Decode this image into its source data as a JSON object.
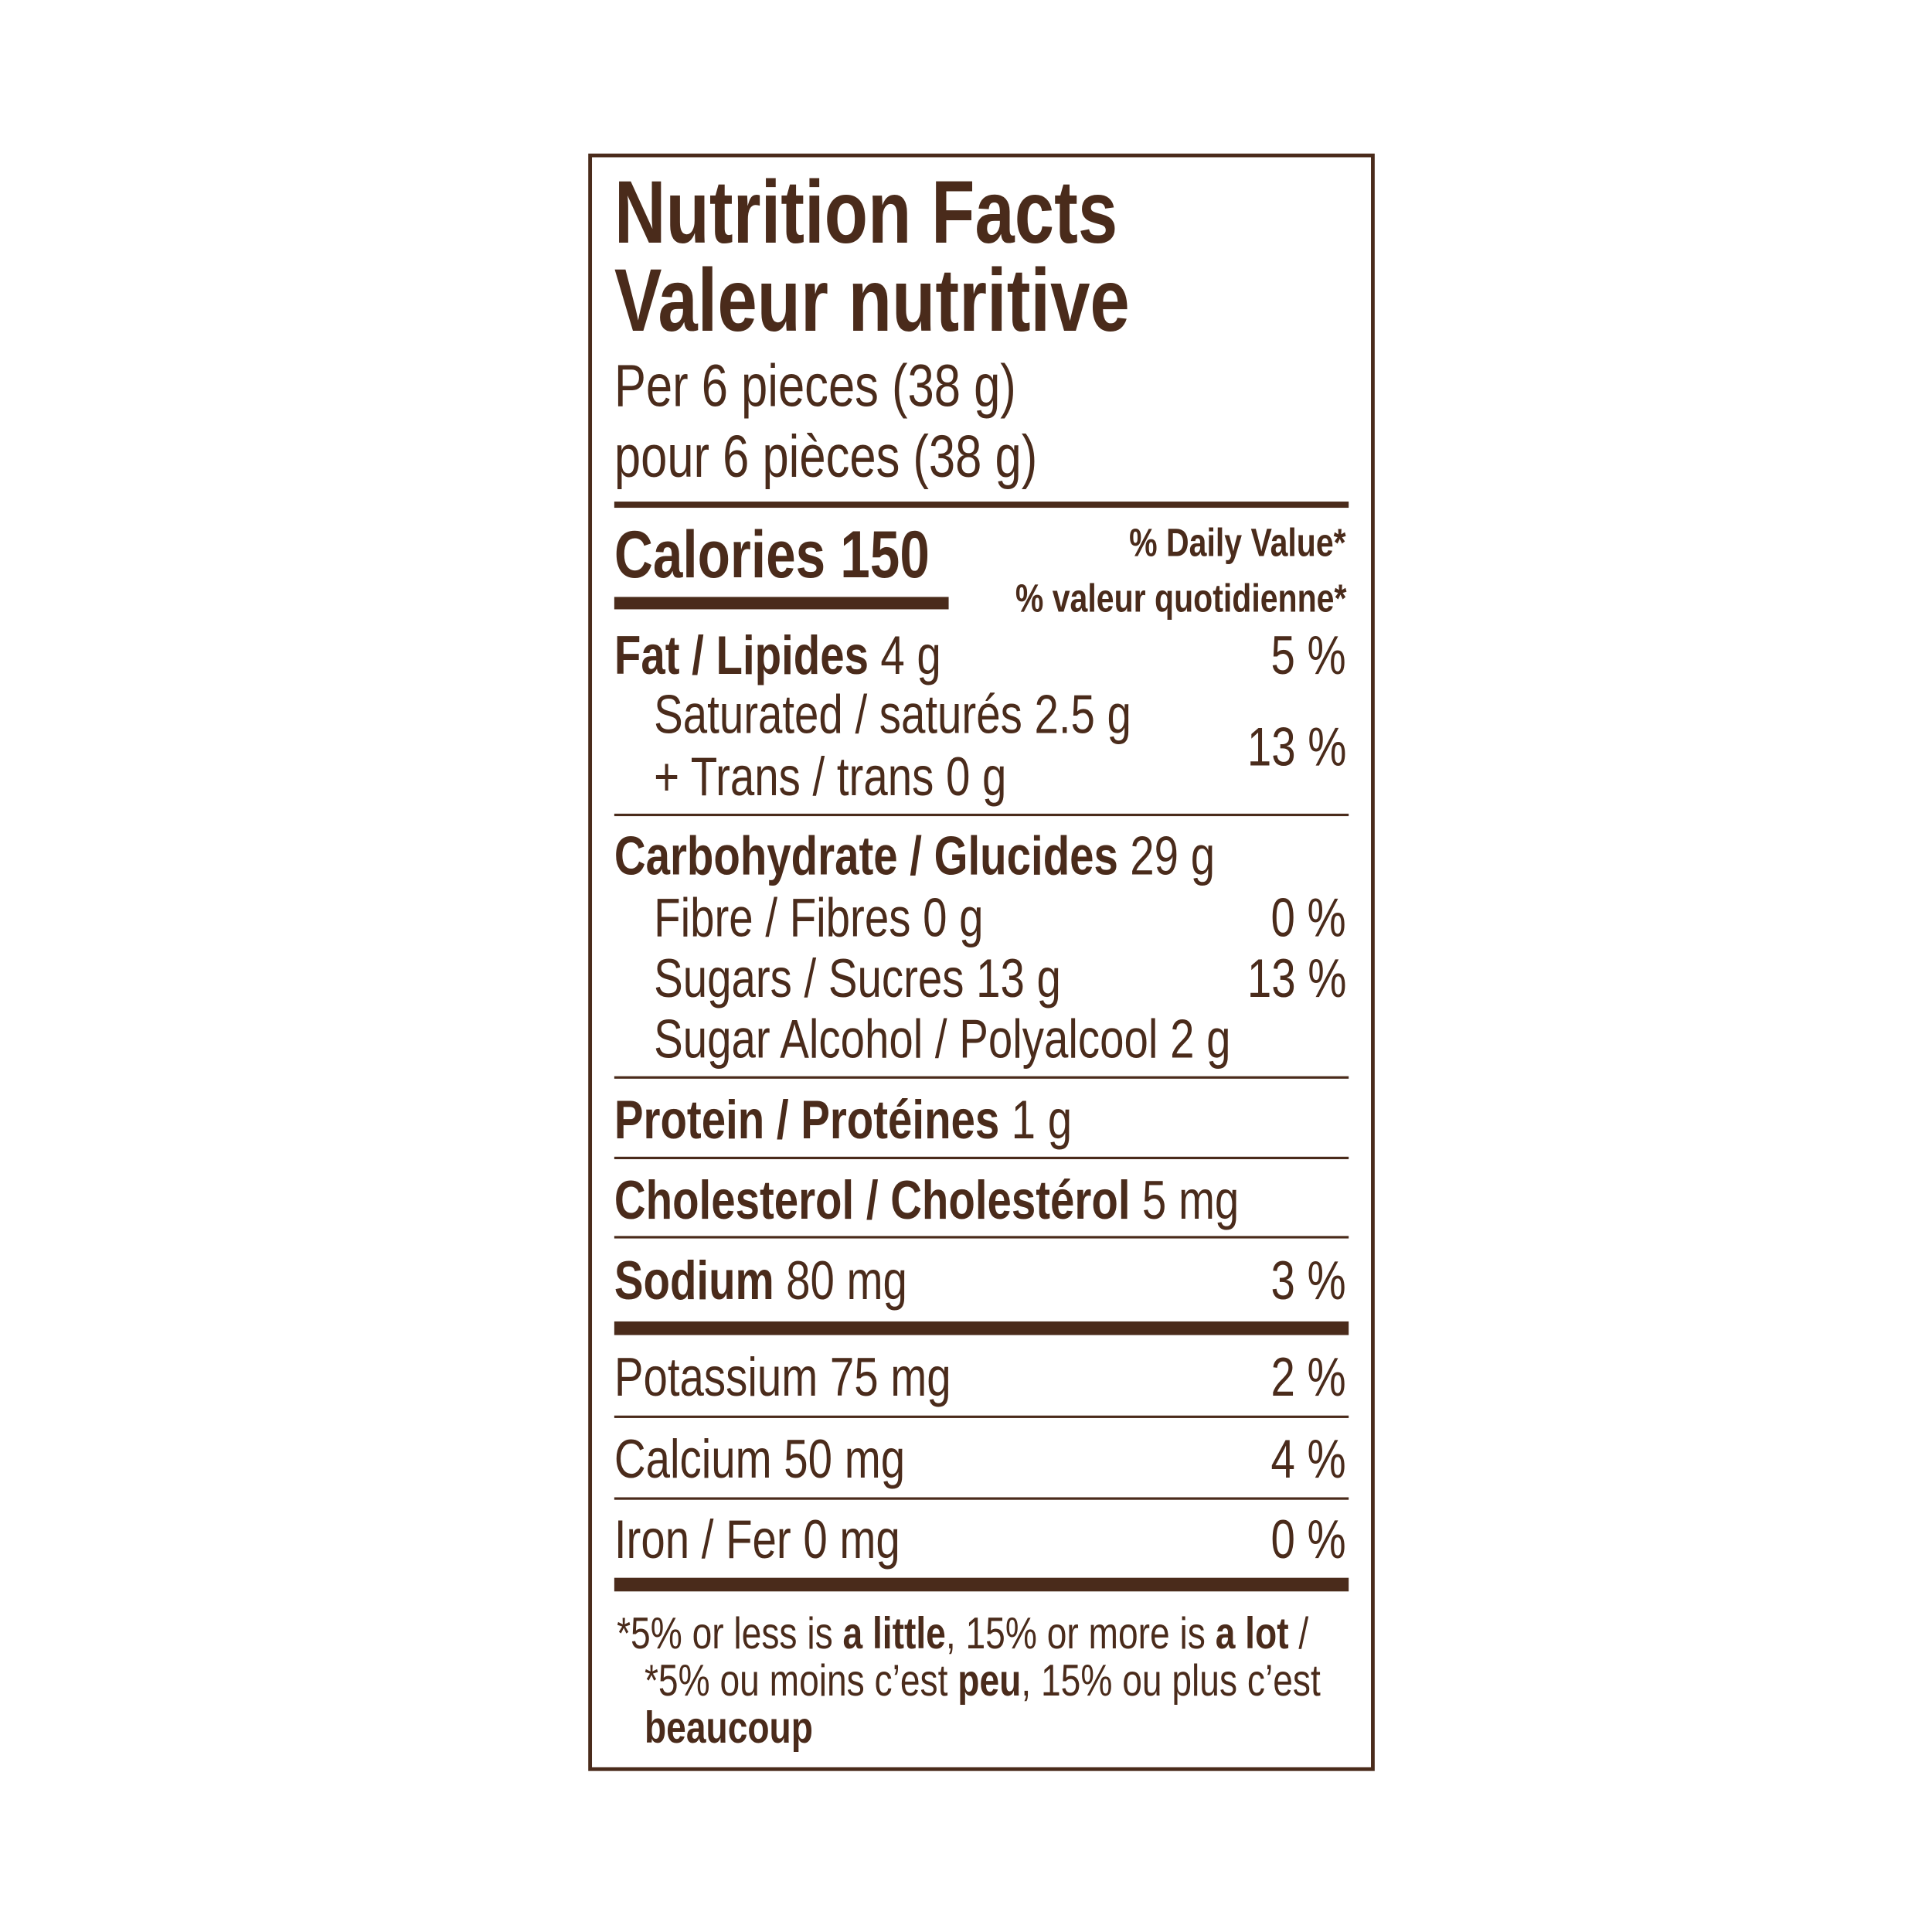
{
  "title": [
    "Nutrition Facts",
    "Valeur nutritive"
  ],
  "serving": [
    "Per 6 pieces (38 g)",
    "pour 6 pièces (38 g)"
  ],
  "calories": "Calories 150",
  "daily_value": [
    "% Daily Value*",
    "% valeur quotidienne*"
  ],
  "fat": {
    "name": "Fat / Lipides",
    "amount": "4 g",
    "dv": "5 %"
  },
  "saturated_trans": {
    "lines": [
      "Saturated / saturés 2.5 g",
      "+ Trans / trans 0 g"
    ],
    "dv": "13 %"
  },
  "carbohydrate": {
    "name": "Carbohydrate / Glucides",
    "amount": "29 g"
  },
  "fibre": {
    "label": "Fibre / Fibres 0 g",
    "dv": "0 %"
  },
  "sugars": {
    "label": "Sugars / Sucres 13 g",
    "dv": "13 %"
  },
  "sugar_alcohol": {
    "label": "Sugar Alcohol / Polyalcool 2 g"
  },
  "protein": {
    "name": "Protein / Protéines",
    "amount": "1 g"
  },
  "cholesterol": {
    "name": "Cholesterol / Cholestérol",
    "amount": "5 mg"
  },
  "sodium": {
    "name": "Sodium",
    "amount": "80 mg",
    "dv": "3 %"
  },
  "potassium": {
    "label": "Potassium 75 mg",
    "dv": "2 %"
  },
  "calcium": {
    "label": "Calcium 50 mg",
    "dv": "4 %"
  },
  "iron": {
    "label": "Iron / Fer 0 mg",
    "dv": "0 %"
  },
  "footnote": [
    "*5% or less is ",
    "a little",
    ", 15% or more is ",
    "a lot",
    " / *5% ou moins c’est ",
    "peu",
    ", 15% ou plus c’est ",
    "beaucoup"
  ]
}
